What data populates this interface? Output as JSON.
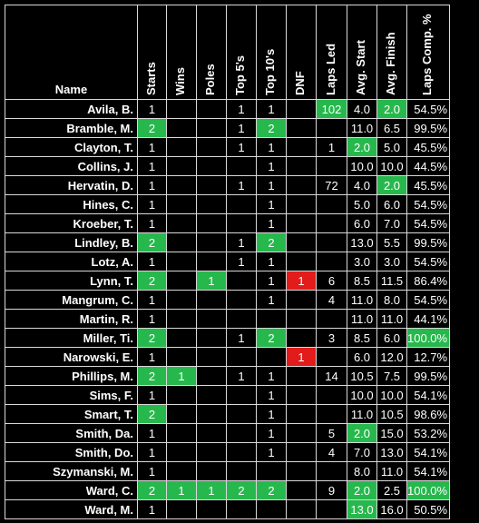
{
  "headers": [
    "Name",
    "Starts",
    "Wins",
    "Poles",
    "Top 5's",
    "Top 10's",
    "DNF",
    "Laps Led",
    "Avg. Start",
    "Avg. Finish",
    "Laps Comp. %"
  ],
  "rows": [
    {
      "name": "Avila, B.",
      "starts": "1",
      "wins": "",
      "poles": "",
      "top5": "1",
      "top10": "1",
      "dnf": "",
      "laps_led": "102",
      "avg_start": "4.0",
      "avg_finish": "2.0",
      "laps_comp": "54.5%",
      "hl": {
        "laps_led": "g",
        "avg_finish": "g"
      }
    },
    {
      "name": "Bramble, M.",
      "starts": "2",
      "wins": "",
      "poles": "",
      "top5": "1",
      "top10": "2",
      "dnf": "",
      "laps_led": "",
      "avg_start": "11.0",
      "avg_finish": "6.5",
      "laps_comp": "99.5%",
      "hl": {
        "starts": "g",
        "top10": "g"
      }
    },
    {
      "name": "Clayton, T.",
      "starts": "1",
      "wins": "",
      "poles": "",
      "top5": "1",
      "top10": "1",
      "dnf": "",
      "laps_led": "1",
      "avg_start": "2.0",
      "avg_finish": "5.0",
      "laps_comp": "45.5%",
      "hl": {
        "avg_start": "g"
      }
    },
    {
      "name": "Collins, J.",
      "starts": "1",
      "wins": "",
      "poles": "",
      "top5": "",
      "top10": "1",
      "dnf": "",
      "laps_led": "",
      "avg_start": "10.0",
      "avg_finish": "10.0",
      "laps_comp": "44.5%",
      "hl": {}
    },
    {
      "name": "Hervatin, D.",
      "starts": "1",
      "wins": "",
      "poles": "",
      "top5": "1",
      "top10": "1",
      "dnf": "",
      "laps_led": "72",
      "avg_start": "4.0",
      "avg_finish": "2.0",
      "laps_comp": "45.5%",
      "hl": {
        "avg_finish": "g"
      }
    },
    {
      "name": "Hines, C.",
      "starts": "1",
      "wins": "",
      "poles": "",
      "top5": "",
      "top10": "1",
      "dnf": "",
      "laps_led": "",
      "avg_start": "5.0",
      "avg_finish": "6.0",
      "laps_comp": "54.5%",
      "hl": {}
    },
    {
      "name": "Kroeber, T.",
      "starts": "1",
      "wins": "",
      "poles": "",
      "top5": "",
      "top10": "1",
      "dnf": "",
      "laps_led": "",
      "avg_start": "6.0",
      "avg_finish": "7.0",
      "laps_comp": "54.5%",
      "hl": {}
    },
    {
      "name": "Lindley, B.",
      "starts": "2",
      "wins": "",
      "poles": "",
      "top5": "1",
      "top10": "2",
      "dnf": "",
      "laps_led": "",
      "avg_start": "13.0",
      "avg_finish": "5.5",
      "laps_comp": "99.5%",
      "hl": {
        "starts": "g",
        "top10": "g"
      }
    },
    {
      "name": "Lotz, A.",
      "starts": "1",
      "wins": "",
      "poles": "",
      "top5": "1",
      "top10": "1",
      "dnf": "",
      "laps_led": "",
      "avg_start": "3.0",
      "avg_finish": "3.0",
      "laps_comp": "54.5%",
      "hl": {}
    },
    {
      "name": "Lynn, T.",
      "starts": "2",
      "wins": "",
      "poles": "1",
      "top5": "",
      "top10": "1",
      "dnf": "1",
      "laps_led": "6",
      "avg_start": "8.5",
      "avg_finish": "11.5",
      "laps_comp": "86.4%",
      "hl": {
        "starts": "g",
        "poles": "g",
        "dnf": "r"
      }
    },
    {
      "name": "Mangrum, C.",
      "starts": "1",
      "wins": "",
      "poles": "",
      "top5": "",
      "top10": "1",
      "dnf": "",
      "laps_led": "4",
      "avg_start": "11.0",
      "avg_finish": "8.0",
      "laps_comp": "54.5%",
      "hl": {}
    },
    {
      "name": "Martin, R.",
      "starts": "1",
      "wins": "",
      "poles": "",
      "top5": "",
      "top10": "",
      "dnf": "",
      "laps_led": "",
      "avg_start": "11.0",
      "avg_finish": "11.0",
      "laps_comp": "44.1%",
      "hl": {}
    },
    {
      "name": "Miller, Ti.",
      "starts": "2",
      "wins": "",
      "poles": "",
      "top5": "1",
      "top10": "2",
      "dnf": "",
      "laps_led": "3",
      "avg_start": "8.5",
      "avg_finish": "6.0",
      "laps_comp": "100.0%",
      "hl": {
        "starts": "g",
        "top10": "g",
        "laps_comp": "g"
      }
    },
    {
      "name": "Narowski, E.",
      "starts": "1",
      "wins": "",
      "poles": "",
      "top5": "",
      "top10": "",
      "dnf": "1",
      "laps_led": "",
      "avg_start": "6.0",
      "avg_finish": "12.0",
      "laps_comp": "12.7%",
      "hl": {
        "dnf": "r"
      }
    },
    {
      "name": "Phillips, M.",
      "starts": "2",
      "wins": "1",
      "poles": "",
      "top5": "1",
      "top10": "1",
      "dnf": "",
      "laps_led": "14",
      "avg_start": "10.5",
      "avg_finish": "7.5",
      "laps_comp": "99.5%",
      "hl": {
        "starts": "g",
        "wins": "g"
      }
    },
    {
      "name": "Sims, F.",
      "starts": "1",
      "wins": "",
      "poles": "",
      "top5": "",
      "top10": "1",
      "dnf": "",
      "laps_led": "",
      "avg_start": "10.0",
      "avg_finish": "10.0",
      "laps_comp": "54.1%",
      "hl": {}
    },
    {
      "name": "Smart, T.",
      "starts": "2",
      "wins": "",
      "poles": "",
      "top5": "",
      "top10": "1",
      "dnf": "",
      "laps_led": "",
      "avg_start": "11.0",
      "avg_finish": "10.5",
      "laps_comp": "98.6%",
      "hl": {
        "starts": "g"
      }
    },
    {
      "name": "Smith, Da.",
      "starts": "1",
      "wins": "",
      "poles": "",
      "top5": "",
      "top10": "1",
      "dnf": "",
      "laps_led": "5",
      "avg_start": "2.0",
      "avg_finish": "15.0",
      "laps_comp": "53.2%",
      "hl": {
        "avg_start": "g"
      }
    },
    {
      "name": "Smith, Do.",
      "starts": "1",
      "wins": "",
      "poles": "",
      "top5": "",
      "top10": "1",
      "dnf": "",
      "laps_led": "4",
      "avg_start": "7.0",
      "avg_finish": "13.0",
      "laps_comp": "54.1%",
      "hl": {}
    },
    {
      "name": "Szymanski, M.",
      "starts": "1",
      "wins": "",
      "poles": "",
      "top5": "",
      "top10": "",
      "dnf": "",
      "laps_led": "",
      "avg_start": "8.0",
      "avg_finish": "11.0",
      "laps_comp": "54.1%",
      "hl": {}
    },
    {
      "name": "Ward, C.",
      "starts": "2",
      "wins": "1",
      "poles": "1",
      "top5": "2",
      "top10": "2",
      "dnf": "",
      "laps_led": "9",
      "avg_start": "2.0",
      "avg_finish": "2.5",
      "laps_comp": "100.0%",
      "hl": {
        "starts": "g",
        "wins": "g",
        "poles": "g",
        "top5": "g",
        "top10": "g",
        "avg_start": "g",
        "laps_comp": "g"
      }
    },
    {
      "name": "Ward, M.",
      "starts": "1",
      "wins": "",
      "poles": "",
      "top5": "",
      "top10": "",
      "dnf": "",
      "laps_led": "",
      "avg_start": "13.0",
      "avg_finish": "16.0",
      "laps_comp": "50.5%",
      "hl": {
        "avg_start": "g"
      }
    }
  ],
  "colors": {
    "highlight_green": "#27b84d",
    "highlight_red": "#e21b1b",
    "background": "#000000",
    "text": "#ffffff",
    "grid": "#d9d9d9"
  }
}
